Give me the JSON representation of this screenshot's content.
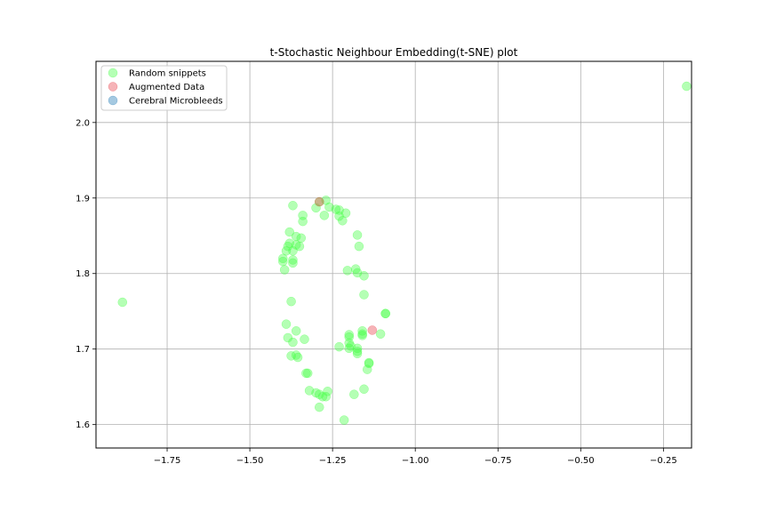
{
  "chart_data": {
    "type": "scatter",
    "title": "t-Stochastic Neighbour Embedding(t-SNE) plot",
    "xlabel": "",
    "ylabel": "",
    "xlim": [
      -1.965,
      -0.165
    ],
    "ylim": [
      1.569,
      2.081
    ],
    "xticks": [
      -1.75,
      -1.5,
      -1.25,
      -1.0,
      -0.75,
      -0.5,
      -0.25
    ],
    "xtick_labels": [
      "−1.75",
      "−1.50",
      "−1.25",
      "−1.00",
      "−0.75",
      "−0.50",
      "−0.25"
    ],
    "yticks": [
      1.6,
      1.7,
      1.8,
      1.9,
      2.0
    ],
    "ytick_labels": [
      "1.6",
      "1.7",
      "1.8",
      "1.9",
      "2.0"
    ],
    "grid": true,
    "legend_position": "top-left",
    "series": [
      {
        "name": "Random snippets",
        "color": "#2ca02c",
        "fill": "#44ff44",
        "points": [
          [
            -0.18,
            2.048
          ],
          [
            -1.885,
            1.762
          ],
          [
            -1.29,
            1.895
          ],
          [
            -1.27,
            1.897
          ],
          [
            -1.26,
            1.888
          ],
          [
            -1.3,
            1.887
          ],
          [
            -1.37,
            1.89
          ],
          [
            -1.34,
            1.877
          ],
          [
            -1.275,
            1.877
          ],
          [
            -1.24,
            1.885
          ],
          [
            -1.23,
            1.884
          ],
          [
            -1.23,
            1.876
          ],
          [
            -1.22,
            1.87
          ],
          [
            -1.21,
            1.88
          ],
          [
            -1.34,
            1.869
          ],
          [
            -1.38,
            1.855
          ],
          [
            -1.36,
            1.849
          ],
          [
            -1.345,
            1.847
          ],
          [
            -1.175,
            1.851
          ],
          [
            -1.38,
            1.84
          ],
          [
            -1.385,
            1.836
          ],
          [
            -1.36,
            1.838
          ],
          [
            -1.35,
            1.836
          ],
          [
            -1.39,
            1.83
          ],
          [
            -1.37,
            1.83
          ],
          [
            -1.17,
            1.836
          ],
          [
            -1.4,
            1.82
          ],
          [
            -1.4,
            1.816
          ],
          [
            -1.37,
            1.818
          ],
          [
            -1.37,
            1.814
          ],
          [
            -1.395,
            1.805
          ],
          [
            -1.205,
            1.804
          ],
          [
            -1.18,
            1.806
          ],
          [
            -1.175,
            1.801
          ],
          [
            -1.155,
            1.797
          ],
          [
            -1.155,
            1.772
          ],
          [
            -1.375,
            1.763
          ],
          [
            -1.09,
            1.747
          ],
          [
            -1.09,
            1.747
          ],
          [
            -1.39,
            1.733
          ],
          [
            -1.36,
            1.724
          ],
          [
            -1.16,
            1.724
          ],
          [
            -1.16,
            1.72
          ],
          [
            -1.2,
            1.719
          ],
          [
            -1.105,
            1.72
          ],
          [
            -1.16,
            1.718
          ],
          [
            -1.2,
            1.716
          ],
          [
            -1.385,
            1.715
          ],
          [
            -1.335,
            1.713
          ],
          [
            -1.37,
            1.709
          ],
          [
            -1.2,
            1.708
          ],
          [
            -1.195,
            1.704
          ],
          [
            -1.23,
            1.703
          ],
          [
            -1.2,
            1.701
          ],
          [
            -1.175,
            1.701
          ],
          [
            -1.175,
            1.697
          ],
          [
            -1.175,
            1.694
          ],
          [
            -1.375,
            1.691
          ],
          [
            -1.36,
            1.692
          ],
          [
            -1.355,
            1.689
          ],
          [
            -1.14,
            1.682
          ],
          [
            -1.14,
            1.681
          ],
          [
            -1.145,
            1.673
          ],
          [
            -1.33,
            1.668
          ],
          [
            -1.325,
            1.668
          ],
          [
            -1.155,
            1.647
          ],
          [
            -1.32,
            1.645
          ],
          [
            -1.265,
            1.644
          ],
          [
            -1.3,
            1.642
          ],
          [
            -1.29,
            1.64
          ],
          [
            -1.185,
            1.64
          ],
          [
            -1.28,
            1.637
          ],
          [
            -1.27,
            1.637
          ],
          [
            -1.29,
            1.623
          ],
          [
            -1.215,
            1.606
          ]
        ]
      },
      {
        "name": "Augmented Data",
        "color": "#d62728",
        "fill": "#e8404a",
        "points": [
          [
            -1.29,
            1.895
          ],
          [
            -1.13,
            1.725
          ]
        ]
      },
      {
        "name": "Cerebral Microbleeds",
        "color": "#1f77b4",
        "fill": "#1f77b4",
        "points": []
      }
    ]
  }
}
